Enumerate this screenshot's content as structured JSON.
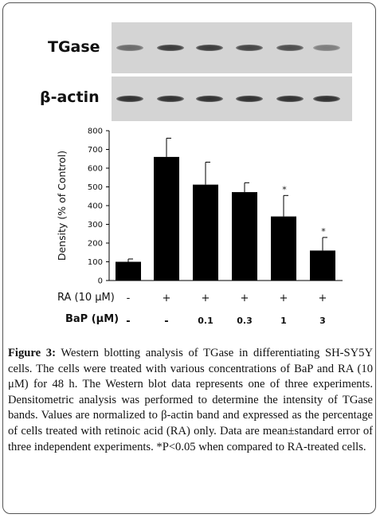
{
  "blots": [
    {
      "label": "TGase",
      "intensities": [
        0.55,
        0.8,
        0.8,
        0.75,
        0.7,
        0.45
      ]
    },
    {
      "label": "β-actin",
      "intensities": [
        0.85,
        0.85,
        0.85,
        0.85,
        0.85,
        0.85
      ]
    }
  ],
  "treatments": {
    "ra_label": "RA (10 μM)",
    "ra_values": [
      "-",
      "+",
      "+",
      "+",
      "+",
      "+"
    ],
    "bap_label": "BaP (μM)",
    "bap_values": [
      "-",
      "-",
      "0.1",
      "0.3",
      "1",
      "3"
    ]
  },
  "chart_data": {
    "type": "bar",
    "categories": [
      "1",
      "2",
      "3",
      "4",
      "5",
      "6"
    ],
    "values": [
      100,
      660,
      512,
      472,
      342,
      160
    ],
    "errors": [
      15,
      100,
      120,
      50,
      112,
      70
    ],
    "significance": [
      "",
      "",
      "",
      "",
      "*",
      "*"
    ],
    "ylabel": "Density (% of Control)",
    "ylim": [
      0,
      800
    ],
    "yticks": [
      0,
      100,
      200,
      300,
      400,
      500,
      600,
      700,
      800
    ],
    "grid": false,
    "bar_color": "#000000"
  },
  "caption": {
    "figure_label": "Figure 3:",
    "text": " Western blotting analysis of TGase in differentiating SH-SY5Y cells. The cells were treated with various concentrations of BaP and RA (10 μM) for 48 h. The Western blot data represents one of three experiments. Densitometric analysis was performed to determine the intensity of TGase bands. Values are normalized to β-actin band and expressed as the percentage of cells treated with retinoic acid (RA) only. Data are mean±standard error of three independent experiments. *P<0.05 when compared to RA-treated cells."
  }
}
